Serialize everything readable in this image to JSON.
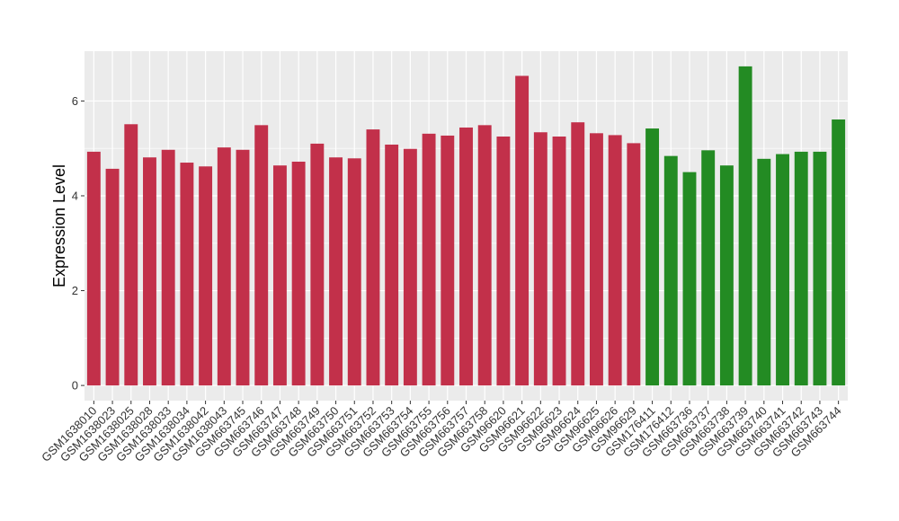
{
  "chart_data": {
    "type": "bar",
    "title": "",
    "xlabel": "",
    "ylabel": "Expression Level",
    "ylim": [
      -0.32,
      7.05
    ],
    "yticks": [
      0,
      2,
      4,
      6
    ],
    "grid": true,
    "legend": "none",
    "categories": [
      "GSM1638010",
      "GSM1638023",
      "GSM1638025",
      "GSM1638028",
      "GSM1638033",
      "GSM1638034",
      "GSM1638042",
      "GSM1638043",
      "GSM663745",
      "GSM663746",
      "GSM663747",
      "GSM663748",
      "GSM663749",
      "GSM663750",
      "GSM663751",
      "GSM663752",
      "GSM663753",
      "GSM663754",
      "GSM663755",
      "GSM663756",
      "GSM663757",
      "GSM663758",
      "GSM96620",
      "GSM96621",
      "GSM96622",
      "GSM96623",
      "GSM96624",
      "GSM96625",
      "GSM96626",
      "GSM96629",
      "GSM176411",
      "GSM176412",
      "GSM663736",
      "GSM663737",
      "GSM663738",
      "GSM663739",
      "GSM663740",
      "GSM663741",
      "GSM663742",
      "GSM663743",
      "GSM663744"
    ],
    "values": [
      4.93,
      4.57,
      5.51,
      4.81,
      4.97,
      4.7,
      4.62,
      5.02,
      4.97,
      5.49,
      4.64,
      4.72,
      5.1,
      4.81,
      4.79,
      5.4,
      5.08,
      4.99,
      5.31,
      5.27,
      5.44,
      5.49,
      5.25,
      6.53,
      5.34,
      5.25,
      5.55,
      5.32,
      5.28,
      5.11,
      5.42,
      4.84,
      4.5,
      4.96,
      4.64,
      6.73,
      4.78,
      4.88,
      4.93,
      4.93,
      5.61
    ],
    "groups": [
      "red",
      "red",
      "red",
      "red",
      "red",
      "red",
      "red",
      "red",
      "red",
      "red",
      "red",
      "red",
      "red",
      "red",
      "red",
      "red",
      "red",
      "red",
      "red",
      "red",
      "red",
      "red",
      "red",
      "red",
      "red",
      "red",
      "red",
      "red",
      "red",
      "red",
      "green",
      "green",
      "green",
      "green",
      "green",
      "green",
      "green",
      "green",
      "green",
      "green",
      "green"
    ],
    "colors": {
      "red": "#c2304a",
      "green": "#238b23",
      "panel": "#ebebeb",
      "grid": "#ffffff"
    }
  }
}
